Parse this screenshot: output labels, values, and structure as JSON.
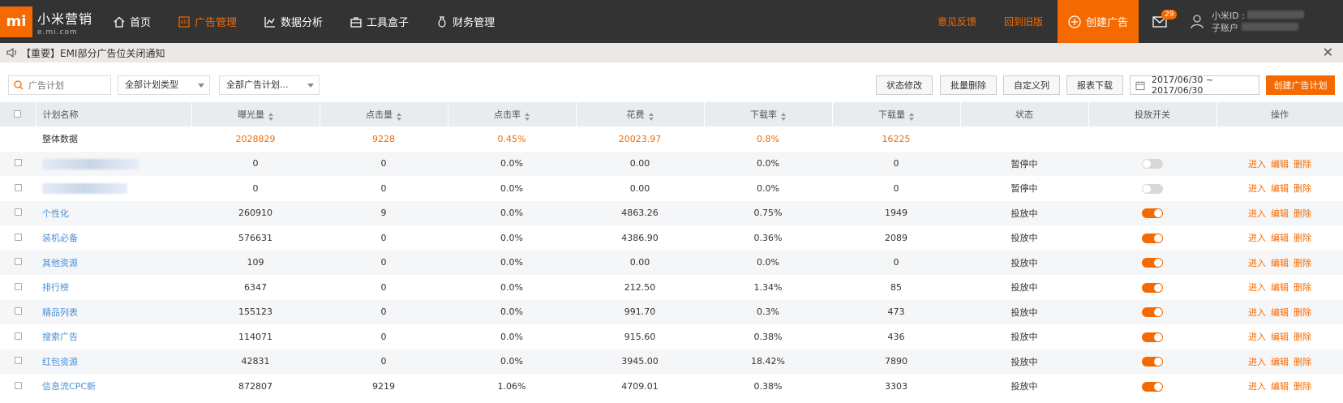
{
  "brand": {
    "logo": "mi",
    "name": "小米营销",
    "sub": "e.mi.com"
  },
  "nav": [
    {
      "label": "首页",
      "icon": "home-icon",
      "active": false
    },
    {
      "label": "广告管理",
      "icon": "ad-icon",
      "active": true
    },
    {
      "label": "数据分析",
      "icon": "chart-icon",
      "active": false
    },
    {
      "label": "工具盒子",
      "icon": "toolbox-icon",
      "active": false
    },
    {
      "label": "财务管理",
      "icon": "money-bag-icon",
      "active": false
    }
  ],
  "topright": {
    "feedback": "意见反馈",
    "old_version": "回到旧版",
    "create_ad": "创建广告",
    "message_count": "29",
    "user_id_label": "小米ID :",
    "sub_account_label": "子账户"
  },
  "notice": {
    "text": "【重要】EMI部分广告位关闭通知"
  },
  "toolbar": {
    "search_placeholder": "广告计划",
    "plan_type": "全部计划类型",
    "ad_plan": "全部广告计划...",
    "status_edit": "状态修改",
    "batch_delete": "批量删除",
    "custom_columns": "自定义列",
    "report_download": "报表下载",
    "date_range": "2017/06/30 ~ 2017/06/30",
    "create_plan": "创建广告计划"
  },
  "table": {
    "headers": [
      "计划名称",
      "曝光量",
      "点击量",
      "点击率",
      "花费",
      "下载率",
      "下载量",
      "状态",
      "投放开关",
      "操作"
    ],
    "total": {
      "name": "整体数据",
      "impressions": "2028829",
      "clicks": "9228",
      "ctr": "0.45%",
      "cost": "20023.97",
      "dl_rate": "0.8%",
      "downloads": "16225"
    },
    "actions": {
      "enter": "进入",
      "edit": "编辑",
      "delete": "删除"
    },
    "rows": [
      {
        "name": "",
        "blurred": true,
        "impressions": "0",
        "clicks": "0",
        "ctr": "0.0%",
        "cost": "0.00",
        "dl_rate": "0.0%",
        "downloads": "0",
        "status": "暂停中",
        "on": false
      },
      {
        "name": "",
        "blurred": true,
        "impressions": "0",
        "clicks": "0",
        "ctr": "0.0%",
        "cost": "0.00",
        "dl_rate": "0.0%",
        "downloads": "0",
        "status": "暂停中",
        "on": false
      },
      {
        "name": "个性化",
        "impressions": "260910",
        "clicks": "9",
        "ctr": "0.0%",
        "cost": "4863.26",
        "dl_rate": "0.75%",
        "downloads": "1949",
        "status": "投放中",
        "on": true
      },
      {
        "name": "装机必备",
        "impressions": "576631",
        "clicks": "0",
        "ctr": "0.0%",
        "cost": "4386.90",
        "dl_rate": "0.36%",
        "downloads": "2089",
        "status": "投放中",
        "on": true
      },
      {
        "name": "其他资源",
        "impressions": "109",
        "clicks": "0",
        "ctr": "0.0%",
        "cost": "0.00",
        "dl_rate": "0.0%",
        "downloads": "0",
        "status": "投放中",
        "on": true
      },
      {
        "name": "排行榜",
        "impressions": "6347",
        "clicks": "0",
        "ctr": "0.0%",
        "cost": "212.50",
        "dl_rate": "1.34%",
        "downloads": "85",
        "status": "投放中",
        "on": true
      },
      {
        "name": "精品列表",
        "impressions": "155123",
        "clicks": "0",
        "ctr": "0.0%",
        "cost": "991.70",
        "dl_rate": "0.3%",
        "downloads": "473",
        "status": "投放中",
        "on": true
      },
      {
        "name": "搜索广告",
        "impressions": "114071",
        "clicks": "0",
        "ctr": "0.0%",
        "cost": "915.60",
        "dl_rate": "0.38%",
        "downloads": "436",
        "status": "投放中",
        "on": true
      },
      {
        "name": "红包资源",
        "impressions": "42831",
        "clicks": "0",
        "ctr": "0.0%",
        "cost": "3945.00",
        "dl_rate": "18.42%",
        "downloads": "7890",
        "status": "投放中",
        "on": true
      },
      {
        "name": "信息流CPC新",
        "impressions": "872807",
        "clicks": "9219",
        "ctr": "1.06%",
        "cost": "4709.01",
        "dl_rate": "0.38%",
        "downloads": "3303",
        "status": "投放中",
        "on": true
      }
    ]
  }
}
